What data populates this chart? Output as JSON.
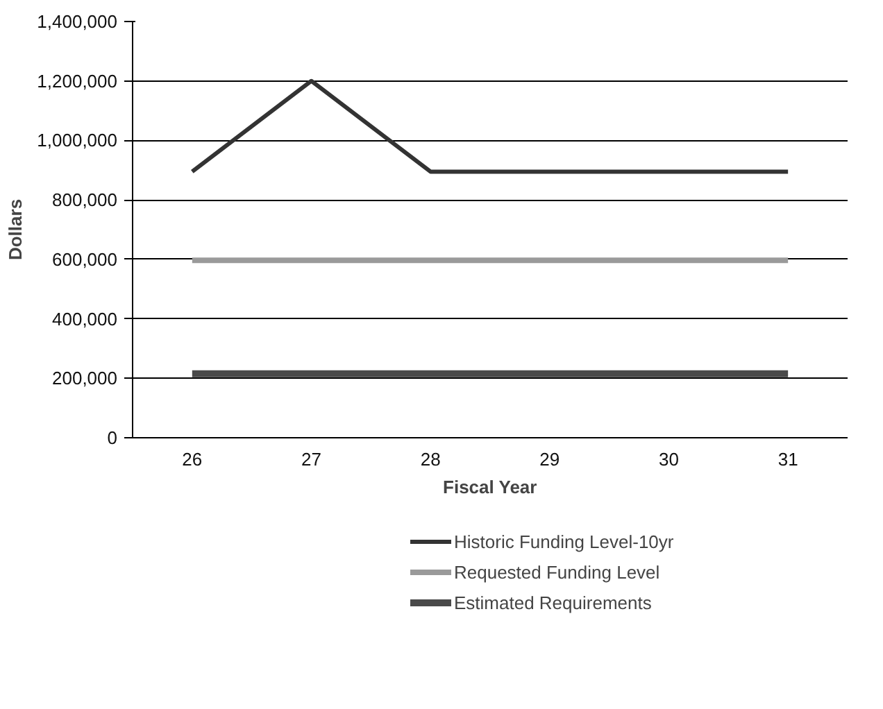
{
  "chart_data": {
    "type": "line",
    "xlabel": "Fiscal Year",
    "ylabel": "Dollars",
    "categories": [
      "26",
      "27",
      "28",
      "29",
      "30",
      "31"
    ],
    "series": [
      {
        "name": "Historic Funding Level-10yr",
        "color": "#333333",
        "values": [
          895000,
          1200000,
          895000,
          895000,
          895000,
          895000
        ]
      },
      {
        "name": "Requested Funding Level",
        "color": "#9a9a9a",
        "values": [
          597000,
          597000,
          597000,
          597000,
          597000,
          597000
        ]
      },
      {
        "name": "Estimated Requirements",
        "color": "#4a4a4a",
        "values": [
          215000,
          215000,
          215000,
          215000,
          215000,
          215000
        ]
      }
    ],
    "ylim": [
      0,
      1400000
    ],
    "yticks": [
      {
        "value": 0,
        "label": "0"
      },
      {
        "value": 200000,
        "label": "200,000"
      },
      {
        "value": 400000,
        "label": "400,000"
      },
      {
        "value": 600000,
        "label": "600,000"
      },
      {
        "value": 800000,
        "label": "800,000"
      },
      {
        "value": 1000000,
        "label": "1,000,000"
      },
      {
        "value": 1200000,
        "label": "1,200,000"
      },
      {
        "value": 1400000,
        "label": "1,400,000"
      }
    ],
    "grid": "y",
    "legend": "bottom",
    "line_style": "solid"
  }
}
